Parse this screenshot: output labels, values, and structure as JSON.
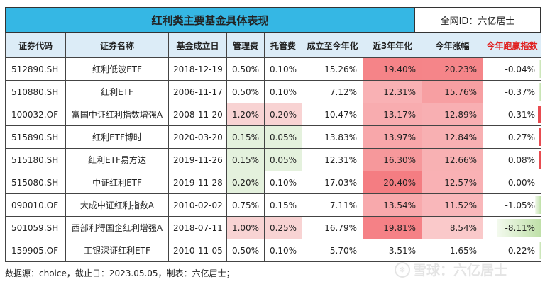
{
  "title": "红利类主要基金具体表现",
  "author_id": "全网ID：六亿居士",
  "columns": [
    "证券代码",
    "证券名称",
    "基金成立日",
    "管理费",
    "托管费",
    "成立至今年化",
    "近3年年化",
    "今年涨幅",
    "今年跑赢指数"
  ],
  "rows": [
    {
      "code": "512890.SH",
      "name": "红利低波ETF",
      "date": "2018-12-19",
      "mgmt": "0.50%",
      "cust": "0.10%",
      "since": "15.26%",
      "y3": "19.40%",
      "ytd": "20.23%",
      "excess": "-0.04%",
      "mgmt_v": 0.5,
      "cust_v": 0.1,
      "y3_v": 19.4,
      "ytd_v": 20.23,
      "excess_v": -0.04
    },
    {
      "code": "510880.SH",
      "name": "红利ETF",
      "date": "2006-11-17",
      "mgmt": "0.50%",
      "cust": "0.10%",
      "since": "7.12%",
      "y3": "12.31%",
      "ytd": "15.76%",
      "excess": "-0.37%",
      "mgmt_v": 0.5,
      "cust_v": 0.1,
      "y3_v": 12.31,
      "ytd_v": 15.76,
      "excess_v": -0.37
    },
    {
      "code": "100032.OF",
      "name": "富国中证红利指数增强A",
      "date": "2008-11-20",
      "mgmt": "1.20%",
      "cust": "0.20%",
      "since": "10.47%",
      "y3": "13.17%",
      "ytd": "12.89%",
      "excess": "0.31%",
      "mgmt_v": 1.2,
      "cust_v": 0.2,
      "y3_v": 13.17,
      "ytd_v": 12.89,
      "excess_v": 0.31
    },
    {
      "code": "515890.SH",
      "name": "红利ETF博时",
      "date": "2020-03-20",
      "mgmt": "0.15%",
      "cust": "0.05%",
      "since": "13.83%",
      "y3": "13.97%",
      "ytd": "12.84%",
      "excess": "0.27%",
      "mgmt_v": 0.15,
      "cust_v": 0.05,
      "y3_v": 13.97,
      "ytd_v": 12.84,
      "excess_v": 0.27
    },
    {
      "code": "515180.SH",
      "name": "红利ETF易方达",
      "date": "2019-11-26",
      "mgmt": "0.15%",
      "cust": "0.05%",
      "since": "12.31%",
      "y3": "16.30%",
      "ytd": "12.66%",
      "excess": "0.08%",
      "mgmt_v": 0.15,
      "cust_v": 0.05,
      "y3_v": 16.3,
      "ytd_v": 12.66,
      "excess_v": 0.08
    },
    {
      "code": "515080.SH",
      "name": "中证红利ETF",
      "date": "2019-11-28",
      "mgmt": "0.20%",
      "cust": "0.10%",
      "since": "17.03%",
      "y3": "20.40%",
      "ytd": "12.57%",
      "excess": "0.00%",
      "mgmt_v": 0.2,
      "cust_v": 0.1,
      "y3_v": 20.4,
      "ytd_v": 12.57,
      "excess_v": 0.0
    },
    {
      "code": "090010.OF",
      "name": "大成中证红利指数A",
      "date": "2010-02-02",
      "mgmt": "0.75%",
      "cust": "0.15%",
      "since": "7.11%",
      "y3": "13.54%",
      "ytd": "11.52%",
      "excess": "-1.05%",
      "mgmt_v": 0.75,
      "cust_v": 0.15,
      "y3_v": 13.54,
      "ytd_v": 11.52,
      "excess_v": -1.05
    },
    {
      "code": "501059.SH",
      "name": "西部利得国企红利增强A",
      "date": "2018-07-11",
      "mgmt": "1.00%",
      "cust": "0.25%",
      "since": "16.79%",
      "y3": "19.81%",
      "ytd": "8.54%",
      "excess": "-8.11%",
      "mgmt_v": 1.0,
      "cust_v": 0.25,
      "y3_v": 19.81,
      "ytd_v": 8.54,
      "excess_v": -8.11
    },
    {
      "code": "159905.OF",
      "name": "工银深证红利ETF",
      "date": "2010-11-05",
      "mgmt": "0.50%",
      "cust": "0.10%",
      "since": "5.70%",
      "y3": "3.51%",
      "ytd": "1.65%",
      "excess": "-0.22%",
      "mgmt_v": 0.5,
      "cust_v": 0.1,
      "y3_v": 3.51,
      "ytd_v": 1.65,
      "excess_v": -0.22
    }
  ],
  "footer": "数据源：choice，截止日：2023.05.05，制表：六亿居士；",
  "watermark": "雪球：六亿居士",
  "colors": {
    "header_bg": "#35b7e4",
    "col_header_bg": "#dcecf7",
    "heat_red": "#f36f74",
    "fee_red": "#f8d3d3",
    "fee_green": "#e4f1dd",
    "alert_red": "#e02020",
    "excess_pos": "#e84b50",
    "excess_neg": "#bfe0a8"
  }
}
